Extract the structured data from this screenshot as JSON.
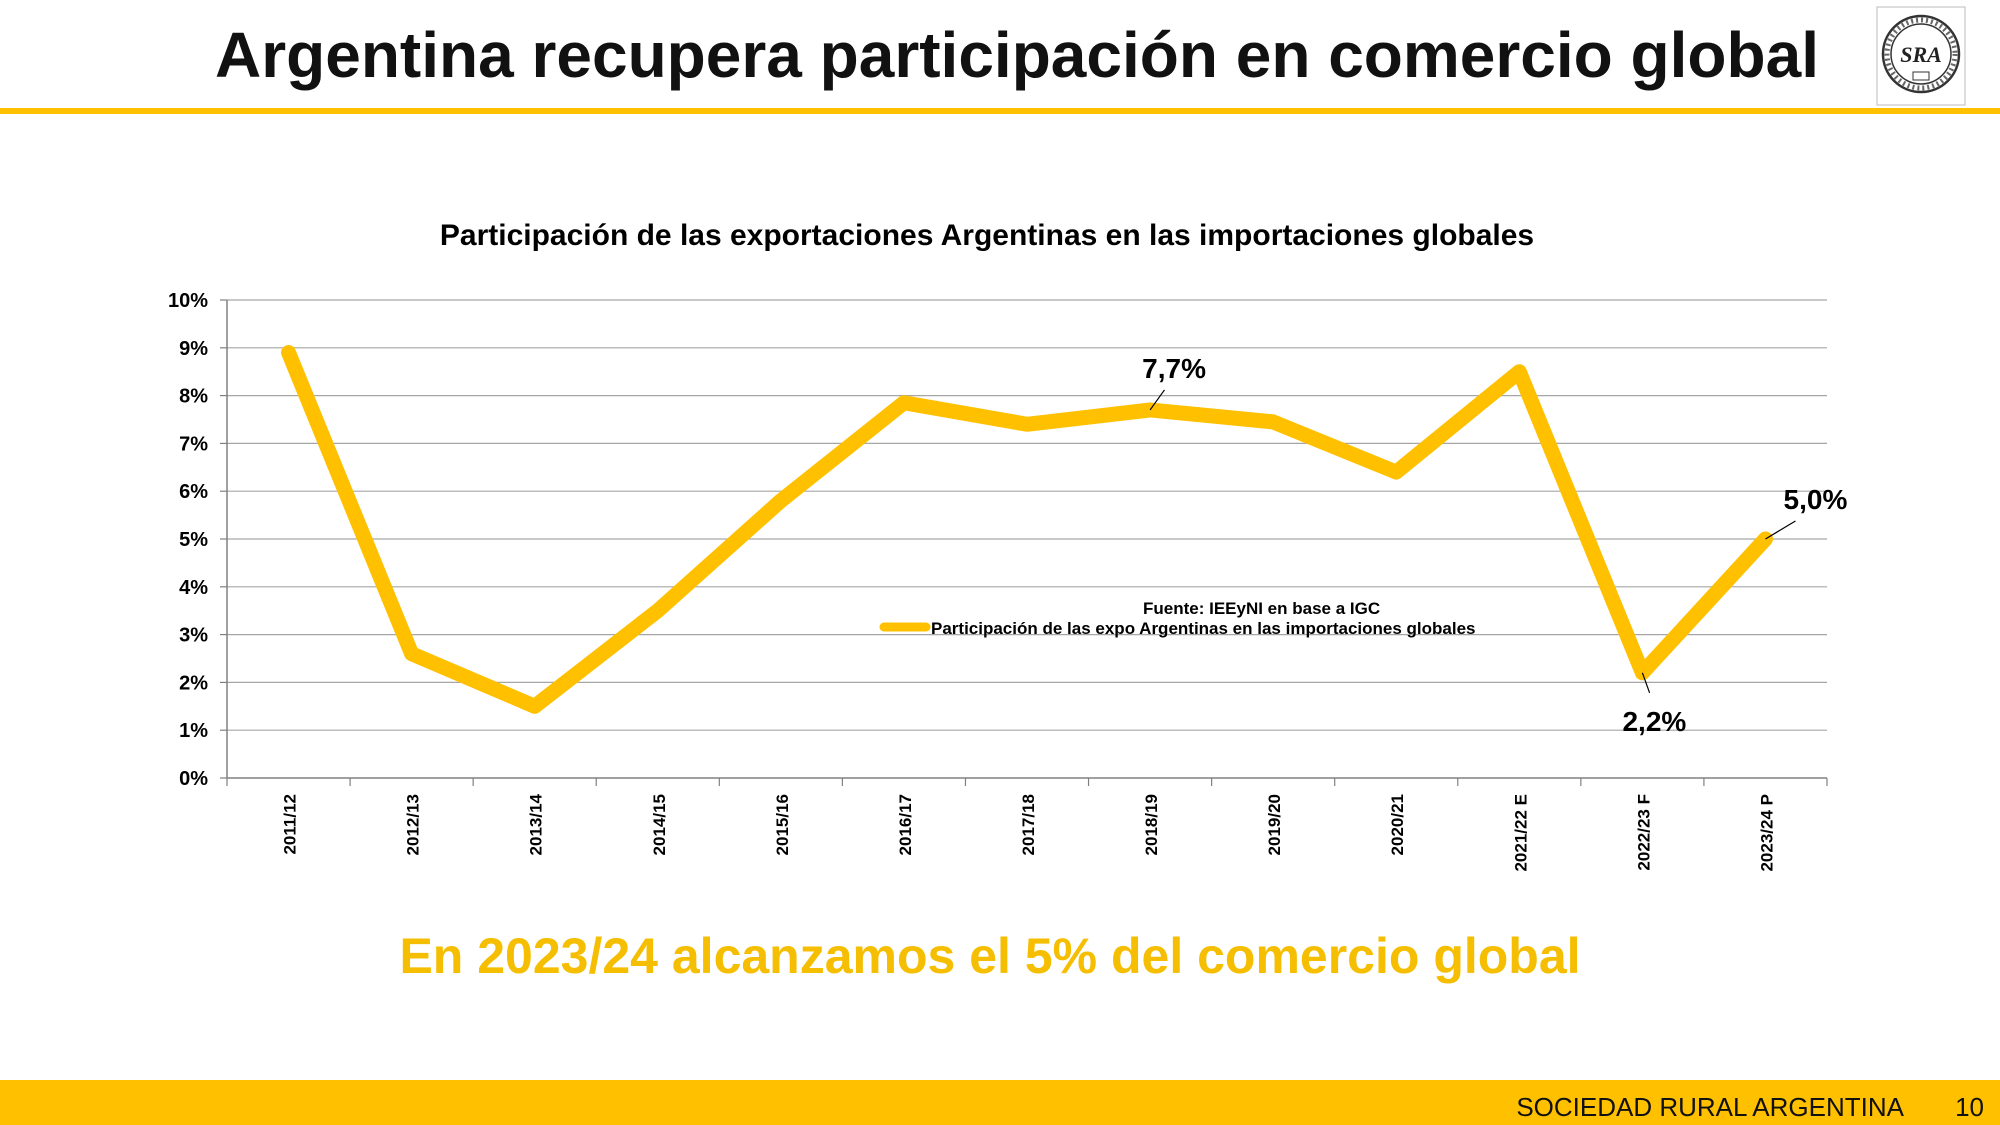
{
  "slide": {
    "title": "Argentina recupera participación en comercio global",
    "footer": "SOCIEDAD RURAL ARGENTINA",
    "page_number": "10",
    "logo_text": "SRA",
    "accent_color": "#FFC000",
    "headline": "En 2023/24 alcanzamos el 5% del comercio global",
    "headline_color": "#F5BE00"
  },
  "chart_data": {
    "type": "line",
    "title": "Participación de las exportaciones Argentinas en las importaciones globales",
    "categories": [
      "2011/12",
      "2012/13",
      "2013/14",
      "2014/15",
      "2015/16",
      "2016/17",
      "2017/18",
      "2018/19",
      "2019/20",
      "2020/21",
      "2021/22 E",
      "2022/23 F",
      "2023/24 P"
    ],
    "series": [
      {
        "name": "Participación de las expo Argentinas en las importaciones globales",
        "values": [
          8.9,
          2.6,
          1.5,
          3.5,
          5.8,
          7.85,
          7.4,
          7.7,
          7.45,
          6.4,
          8.5,
          2.2,
          5.0
        ],
        "color": "#FFC000"
      }
    ],
    "y_ticks": [
      "0%",
      "1%",
      "2%",
      "3%",
      "4%",
      "5%",
      "6%",
      "7%",
      "8%",
      "9%",
      "10%"
    ],
    "ylim": [
      0,
      10
    ],
    "grid": true,
    "legend_position": "center",
    "source_note": "Fuente: IEEyNI en base a IGC",
    "annotations": [
      {
        "category": "2018/19",
        "text": "7,7%"
      },
      {
        "category": "2022/23 F",
        "text": "2,2%"
      },
      {
        "category": "2023/24 P",
        "text": "5,0%"
      }
    ]
  }
}
